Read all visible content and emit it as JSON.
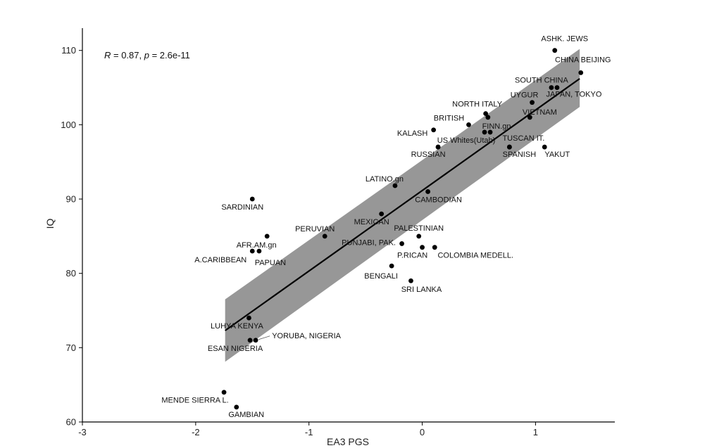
{
  "chart_data": {
    "type": "scatter",
    "xlabel": "EA3 PGS",
    "ylabel": "IQ",
    "xlim": [
      -3,
      1.7
    ],
    "ylim": [
      60,
      113
    ],
    "xticks": [
      -3,
      -2,
      -1,
      0,
      1
    ],
    "xtick_labels": [
      "-3",
      "-2",
      "-1",
      "0",
      "1"
    ],
    "yticks": [
      60,
      70,
      80,
      90,
      100,
      110
    ],
    "ytick_labels": [
      "60",
      "70",
      "80",
      "90",
      "100",
      "110"
    ],
    "annotation": {
      "r_symbol": "R",
      "r_text": " = 0.87, ",
      "p_symbol": "p",
      "p_text": " = 2.6e-11"
    },
    "regression": {
      "x_start": -1.74,
      "y_start": 72.3,
      "x_end": 1.39,
      "y_end": 106.2,
      "band_start": [
        68.1,
        76.5
      ],
      "band_end": [
        102.4,
        110.2
      ]
    },
    "grid": false,
    "points": [
      {
        "label": "ASHK. JEWS",
        "x": 1.17,
        "y": 110
      },
      {
        "label": "CHINA BEIJING",
        "x": 1.4,
        "y": 107
      },
      {
        "label": "SOUTH CHINA",
        "x": 1.14,
        "y": 105
      },
      {
        "label": "JAPAN, TOKYO",
        "x": 1.19,
        "y": 105
      },
      {
        "label": "UYGUR",
        "x": 0.97,
        "y": 103
      },
      {
        "label": "VIETNAM",
        "x": 0.95,
        "y": 101
      },
      {
        "label": "NORTH ITALY",
        "x": 0.56,
        "y": 101.5
      },
      {
        "label": "",
        "x": 0.58,
        "y": 101
      },
      {
        "label": "BRITISH",
        "x": 0.41,
        "y": 100
      },
      {
        "label": "FINN.gn",
        "x": 0.6,
        "y": 99
      },
      {
        "label": "",
        "x": 0.55,
        "y": 99
      },
      {
        "label": "KALASH",
        "x": 0.1,
        "y": 99.3
      },
      {
        "label": "US Whites(Utah)",
        "x": 0.14,
        "y": 97
      },
      {
        "label": "TUSCAN IT.",
        "x": 0.77,
        "y": 97
      },
      {
        "label": "SPANISH",
        "x": 0.77,
        "y": 97
      },
      {
        "label": "YAKUT",
        "x": 1.08,
        "y": 97
      },
      {
        "label": "RUSSIAN",
        "x": 0.14,
        "y": 97
      },
      {
        "label": "LATINO.gn",
        "x": -0.24,
        "y": 91.8
      },
      {
        "label": "CAMBODIAN",
        "x": 0.05,
        "y": 91
      },
      {
        "label": "SARDINIAN",
        "x": -1.5,
        "y": 90
      },
      {
        "label": "MEXICAN",
        "x": -0.36,
        "y": 88
      },
      {
        "label": "PERUVIAN",
        "x": -0.86,
        "y": 85
      },
      {
        "label": "PALESTINIAN",
        "x": -0.03,
        "y": 85
      },
      {
        "label": "AFR.AM.gn",
        "x": -1.37,
        "y": 85
      },
      {
        "label": "PUNJABI, PAK.",
        "x": -0.18,
        "y": 84
      },
      {
        "label": "P.RICAN",
        "x": 0,
        "y": 83.5
      },
      {
        "label": "COLOMBIA MEDELL.",
        "x": 0.11,
        "y": 83.5
      },
      {
        "label": "A.CARIBBEAN",
        "x": -1.5,
        "y": 83
      },
      {
        "label": "PAPUAN",
        "x": -1.44,
        "y": 83
      },
      {
        "label": "BENGALI",
        "x": -0.27,
        "y": 81
      },
      {
        "label": "SRI LANKA",
        "x": -0.1,
        "y": 79
      },
      {
        "label": "LUHYA KENYA",
        "x": -1.53,
        "y": 74
      },
      {
        "label": "YORUBA, NIGERIA",
        "x": -1.47,
        "y": 71
      },
      {
        "label": "ESAN NIGERIA",
        "x": -1.52,
        "y": 71
      },
      {
        "label": "MENDE SIERRA L.",
        "x": -1.75,
        "y": 64
      },
      {
        "label": "GAMBIAN",
        "x": -1.64,
        "y": 62
      }
    ]
  }
}
